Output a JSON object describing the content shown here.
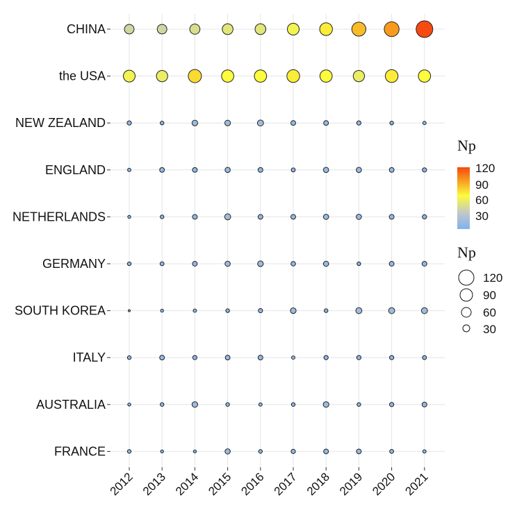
{
  "chart_data": {
    "type": "scatter",
    "title": "",
    "xlabel": "",
    "ylabel": "",
    "categories_x": [
      "2012",
      "2013",
      "2014",
      "2015",
      "2016",
      "2017",
      "2018",
      "2019",
      "2020",
      "2021"
    ],
    "categories_y": [
      "CHINA",
      "the USA",
      "NEW ZEALAND",
      "ENGLAND",
      "NETHERLANDS",
      "GERMANY",
      "SOUTH KOREA",
      "ITALY",
      "AUSTRALIA",
      "FRANCE"
    ],
    "size_and_color_variable": "Np",
    "values": {
      "CHINA": [
        40,
        40,
        45,
        50,
        50,
        60,
        70,
        85,
        95,
        120
      ],
      "the USA": [
        60,
        55,
        75,
        65,
        65,
        70,
        65,
        55,
        70,
        65
      ],
      "NEW ZEALAND": [
        8,
        6,
        14,
        14,
        16,
        10,
        10,
        8,
        6,
        5
      ],
      "ENGLAND": [
        5,
        10,
        10,
        12,
        10,
        7,
        12,
        12,
        10,
        8
      ],
      "NETHERLANDS": [
        4,
        6,
        10,
        16,
        10,
        10,
        12,
        12,
        10,
        8
      ],
      "GERMANY": [
        6,
        7,
        10,
        12,
        14,
        9,
        12,
        6,
        10,
        10
      ],
      "SOUTH KOREA": [
        1,
        4,
        5,
        6,
        8,
        14,
        6,
        16,
        16,
        16
      ],
      "ITALY": [
        6,
        10,
        8,
        10,
        10,
        5,
        8,
        8,
        8,
        7
      ],
      "AUSTRALIA": [
        4,
        6,
        14,
        6,
        5,
        6,
        14,
        6,
        8,
        10
      ],
      "FRANCE": [
        6,
        4,
        4,
        12,
        6,
        8,
        10,
        10,
        7,
        5
      ]
    },
    "size_range": [
      0,
      120
    ],
    "color_scale": {
      "stops": [
        {
          "value": 0,
          "color": "#7fb2f0"
        },
        {
          "value": 30,
          "color": "#bfc6cc"
        },
        {
          "value": 65,
          "color": "#fcfc3c"
        },
        {
          "value": 95,
          "color": "#f79a1e"
        },
        {
          "value": 120,
          "color": "#f74a10"
        }
      ]
    },
    "grid": true,
    "legend_position": "right",
    "legends": {
      "color": {
        "title": "Np",
        "ticks": [
          120,
          90,
          60,
          30
        ]
      },
      "size": {
        "title": "Np",
        "ticks": [
          120,
          90,
          60,
          30
        ]
      }
    }
  },
  "labels": {
    "color_legend_title": "Np",
    "size_legend_title": "Np",
    "color_ticks": [
      "120",
      "90",
      "60",
      "30"
    ],
    "size_ticks": [
      "120",
      "90",
      "60",
      "30"
    ]
  }
}
